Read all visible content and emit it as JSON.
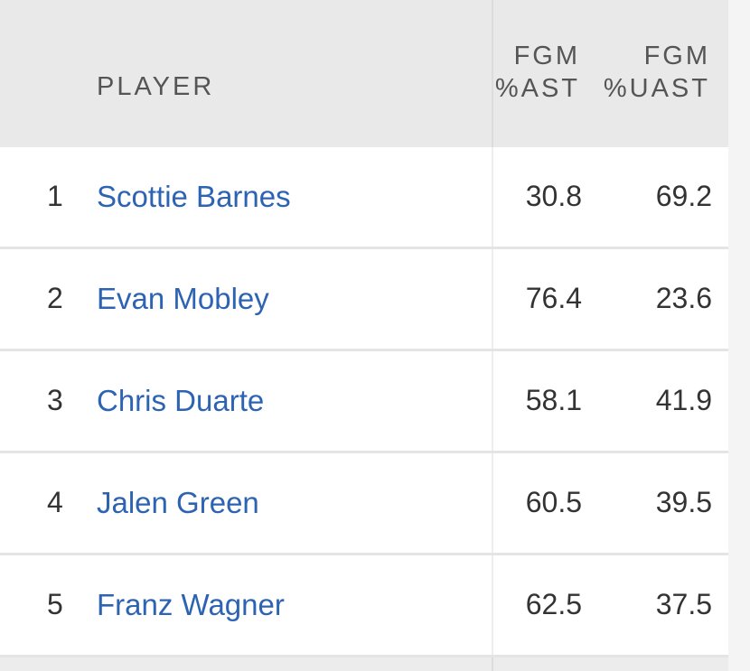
{
  "table": {
    "headers": {
      "player": "PLAYER",
      "fgm_ast_line1": "FGM",
      "fgm_ast_line2": "%AST",
      "fgm_uast_line1": "FGM",
      "fgm_uast_line2": "%UAST"
    },
    "rows": [
      {
        "rank": "1",
        "player": "Scottie Barnes",
        "fgm_ast": "30.8",
        "fgm_uast": "69.2"
      },
      {
        "rank": "2",
        "player": "Evan Mobley",
        "fgm_ast": "76.4",
        "fgm_uast": "23.6"
      },
      {
        "rank": "3",
        "player": "Chris Duarte",
        "fgm_ast": "58.1",
        "fgm_uast": "41.9"
      },
      {
        "rank": "4",
        "player": "Jalen Green",
        "fgm_ast": "60.5",
        "fgm_uast": "39.5"
      },
      {
        "rank": "5",
        "player": "Franz Wagner",
        "fgm_ast": "62.5",
        "fgm_uast": "37.5"
      }
    ]
  },
  "colors": {
    "header_bg": "#e9e9e9",
    "link": "#2d63b3",
    "text": "#333333",
    "header_text": "#555555"
  }
}
